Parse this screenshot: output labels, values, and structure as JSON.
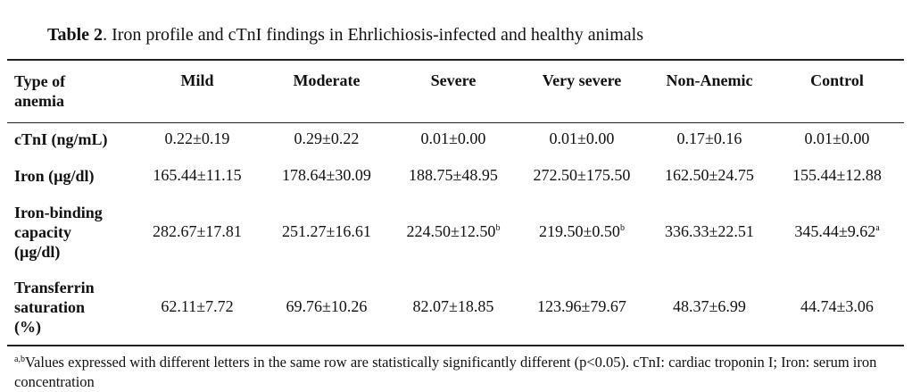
{
  "table": {
    "title_bold": "Table 2",
    "title_rest": ". Iron profile and cTnI findings in Ehrlichiosis-infected and healthy animals",
    "header": {
      "row_label_line1": "Type of",
      "row_label_line2": "anemia",
      "columns": [
        "Mild",
        "Moderate",
        "Severe",
        "Very severe",
        "Non-Anemic",
        "Control"
      ]
    },
    "rows": [
      {
        "label_lines": [
          "cTnI (ng/mL)"
        ],
        "cells": [
          {
            "value": "0.22±0.19",
            "sup": ""
          },
          {
            "value": "0.29±0.22",
            "sup": ""
          },
          {
            "value": "0.01±0.00",
            "sup": ""
          },
          {
            "value": "0.01±0.00",
            "sup": ""
          },
          {
            "value": "0.17±0.16",
            "sup": ""
          },
          {
            "value": "0.01±0.00",
            "sup": ""
          }
        ]
      },
      {
        "label_lines": [
          "Iron (µg/dl)"
        ],
        "cells": [
          {
            "value": "165.44±11.15",
            "sup": ""
          },
          {
            "value": "178.64±30.09",
            "sup": ""
          },
          {
            "value": "188.75±48.95",
            "sup": ""
          },
          {
            "value": "272.50±175.50",
            "sup": ""
          },
          {
            "value": "162.50±24.75",
            "sup": ""
          },
          {
            "value": "155.44±12.88",
            "sup": ""
          }
        ]
      },
      {
        "label_lines": [
          "Iron-binding",
          "capacity",
          "(µg/dl)"
        ],
        "cells": [
          {
            "value": "282.67±17.81",
            "sup": ""
          },
          {
            "value": "251.27±16.61",
            "sup": ""
          },
          {
            "value": "224.50±12.50",
            "sup": "b"
          },
          {
            "value": "219.50±0.50",
            "sup": "b"
          },
          {
            "value": "336.33±22.51",
            "sup": ""
          },
          {
            "value": "345.44±9.62",
            "sup": "a"
          }
        ]
      },
      {
        "label_lines": [
          "Transferrin",
          "saturation",
          "(%)"
        ],
        "cells": [
          {
            "value": "62.11±7.72",
            "sup": ""
          },
          {
            "value": "69.76±10.26",
            "sup": ""
          },
          {
            "value": "82.07±18.85",
            "sup": ""
          },
          {
            "value": "123.96±79.67",
            "sup": ""
          },
          {
            "value": "48.37±6.99",
            "sup": ""
          },
          {
            "value": "44.74±3.06",
            "sup": ""
          }
        ]
      }
    ],
    "footnote": {
      "sup": "a,b",
      "text": "Values expressed with different letters in the same row are statistically significantly different (p<0.05).  cTnI: cardiac troponin I; Iron: serum iron concentration"
    }
  }
}
